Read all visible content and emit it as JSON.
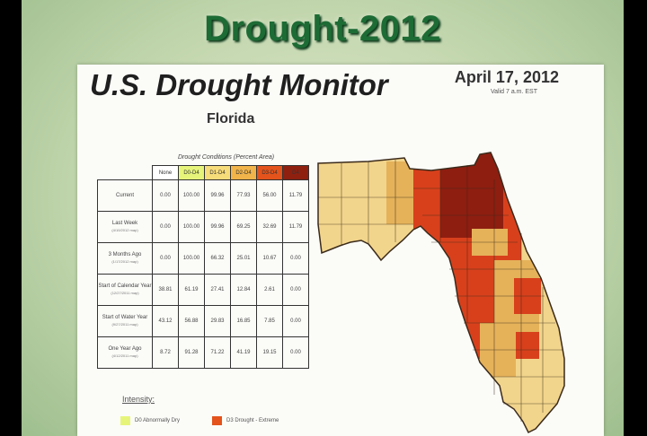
{
  "slide": {
    "title": "Drought-2012"
  },
  "monitor": {
    "title": "U.S. Drought Monitor",
    "date": "April 17, 2012",
    "valid": "Valid 7 a.m. EST",
    "region": "Florida"
  },
  "table": {
    "caption": "Drought Conditions (Percent Area)",
    "headers": [
      "None",
      "D0-D4",
      "D1-D4",
      "D2-D4",
      "D3-D4",
      "D4"
    ],
    "header_colors": [
      "#ffffff",
      "#e6f57a",
      "#f7dc7a",
      "#f0b44a",
      "#e4531b",
      "#8f2010"
    ],
    "rows": [
      {
        "label": "Current",
        "sub": "",
        "values": [
          "0.00",
          "100.00",
          "99.96",
          "77.93",
          "56.00",
          "11.79"
        ]
      },
      {
        "label": "Last Week",
        "sub": "(4/10/2012 map)",
        "values": [
          "0.00",
          "100.00",
          "99.96",
          "69.25",
          "32.69",
          "11.79"
        ]
      },
      {
        "label": "3 Months Ago",
        "sub": "(1/17/2012 map)",
        "values": [
          "0.00",
          "100.00",
          "66.32",
          "25.01",
          "10.67",
          "0.00"
        ]
      },
      {
        "label": "Start of Calendar Year",
        "sub": "(12/27/2011 map)",
        "values": [
          "38.81",
          "61.19",
          "27.41",
          "12.84",
          "2.61",
          "0.00"
        ]
      },
      {
        "label": "Start of Water Year",
        "sub": "(9/27/2011 map)",
        "values": [
          "43.12",
          "56.88",
          "29.83",
          "16.85",
          "7.85",
          "0.00"
        ]
      },
      {
        "label": "One Year Ago",
        "sub": "(4/12/2011 map)",
        "values": [
          "8.72",
          "91.28",
          "71.22",
          "41.19",
          "19.15",
          "0.00"
        ]
      }
    ]
  },
  "legend": {
    "title": "Intensity:",
    "items": [
      {
        "label": "D0 Abnormally Dry",
        "color": "#e6f57a"
      },
      {
        "label": "D3 Drought - Extreme",
        "color": "#e4531b"
      }
    ]
  },
  "map": {
    "colors": {
      "d1": "#f2d58c",
      "d2": "#e5b25a",
      "d3": "#d8401c",
      "d4": "#8e1e10",
      "outline": "#3a2a1a"
    }
  }
}
